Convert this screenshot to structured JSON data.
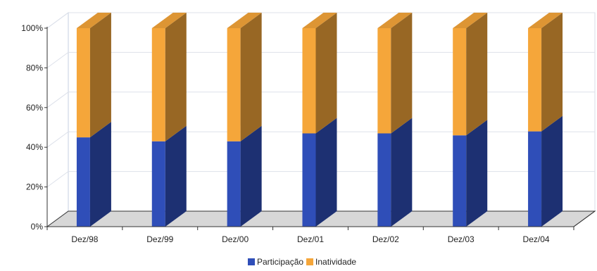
{
  "chart_data": {
    "type": "bar",
    "stacked": true,
    "percent": true,
    "three_d": true,
    "categories": [
      "Dez/98",
      "Dez/99",
      "Dez/00",
      "Dez/01",
      "Dez/02",
      "Dez/03",
      "Dez/04"
    ],
    "series": [
      {
        "name": "Participação",
        "values": [
          45,
          43,
          43,
          47,
          47,
          46,
          48
        ],
        "color": "#2f4eb8"
      },
      {
        "name": "Inatividade",
        "values": [
          55,
          57,
          57,
          53,
          53,
          54,
          52
        ],
        "color": "#f5a63a"
      }
    ],
    "ylim": [
      0,
      100
    ],
    "y_ticks": [
      "0%",
      "20%",
      "40%",
      "60%",
      "80%",
      "100%"
    ],
    "grid": true,
    "legend_position": "bottom"
  }
}
